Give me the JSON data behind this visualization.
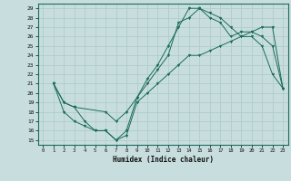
{
  "xlabel": "Humidex (Indice chaleur)",
  "xlim": [
    -0.5,
    23.5
  ],
  "ylim": [
    14.5,
    29.5
  ],
  "xticks": [
    0,
    1,
    2,
    3,
    4,
    5,
    6,
    7,
    8,
    9,
    10,
    11,
    12,
    13,
    14,
    15,
    16,
    17,
    18,
    19,
    20,
    21,
    22,
    23
  ],
  "yticks": [
    15,
    16,
    17,
    18,
    19,
    20,
    21,
    22,
    23,
    24,
    25,
    26,
    27,
    28,
    29
  ],
  "bg_color": "#c8dede",
  "line_color": "#1a6b5a",
  "grid_color": "#b0cccc",
  "line1_x": [
    1,
    2,
    3,
    4,
    5,
    6,
    7,
    8,
    9,
    10,
    11,
    12,
    13,
    14,
    15,
    16,
    17,
    18,
    19,
    20,
    21,
    22,
    23
  ],
  "line1_y": [
    21,
    19,
    18.5,
    17,
    16,
    16,
    15,
    16,
    19.5,
    21,
    22.5,
    24,
    27.5,
    28,
    29,
    28.5,
    28,
    27,
    26,
    26,
    25,
    22,
    20.5
  ],
  "line2_x": [
    1,
    2,
    3,
    4,
    5,
    6,
    7,
    8,
    9,
    10,
    11,
    12,
    13,
    14,
    15,
    16,
    17,
    18,
    19,
    20,
    21,
    22,
    23
  ],
  "line2_y": [
    21,
    18,
    17,
    16.5,
    16,
    16,
    15,
    15.5,
    19,
    20,
    21,
    22,
    23,
    24,
    24,
    24.5,
    25,
    25.5,
    26,
    26.5,
    27,
    27,
    20.5
  ],
  "line3_x": [
    1,
    2,
    3,
    6,
    7,
    8,
    9,
    10,
    11,
    12,
    13,
    14,
    15,
    16,
    17,
    18,
    19,
    20,
    21,
    22,
    23
  ],
  "line3_y": [
    21,
    19,
    18.5,
    18,
    17,
    18,
    19.5,
    21.5,
    23,
    25,
    27,
    29,
    29,
    28,
    27.5,
    26,
    26.5,
    26.5,
    26,
    25,
    20.5
  ]
}
